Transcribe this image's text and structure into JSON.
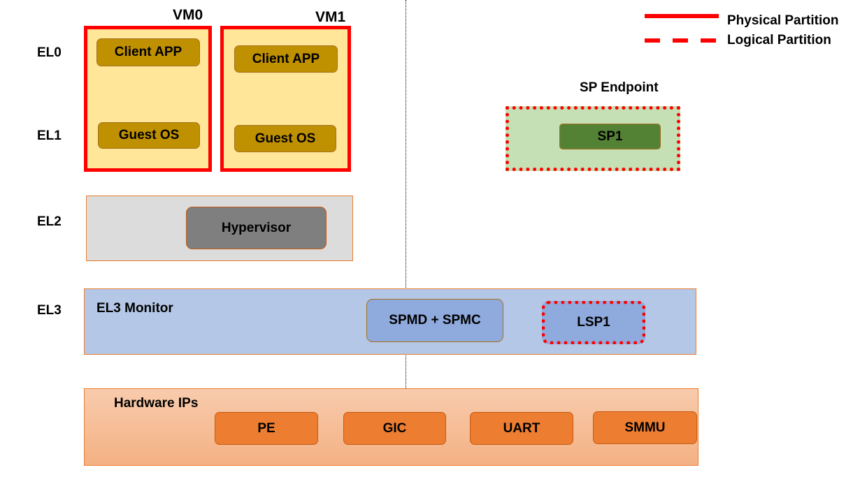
{
  "levels": [
    "EL0",
    "EL1",
    "EL2",
    "EL3"
  ],
  "vms": [
    {
      "name": "VM0",
      "client": "Client APP",
      "os": "Guest OS"
    },
    {
      "name": "VM1",
      "client": "Client APP",
      "os": "Guest OS"
    }
  ],
  "sp_endpoint": {
    "title": "SP Endpoint",
    "sp": "SP1"
  },
  "el2": {
    "hypervisor": "Hypervisor"
  },
  "el3": {
    "title": "EL3 Monitor",
    "spmd": "SPMD + SPMC",
    "lsp": "LSP1"
  },
  "hardware": {
    "title": "Hardware IPs",
    "ips": [
      "PE",
      "GIC",
      "UART",
      "SMMU"
    ]
  },
  "legend": {
    "physical": "Physical Partition",
    "logical": "Logical Partition"
  },
  "colors": {
    "partition": "#ff0000",
    "vm_fill": "#ffe699",
    "app": "#bf9000",
    "sp_fill": "#c5e0b4",
    "sp1": "#548235",
    "el2_fill": "#dcdcdc",
    "hypervisor": "#7f7f7f",
    "el3_fill": "#b4c7e7",
    "spmc": "#8faadc",
    "hw_fill": "#f8cbad",
    "ip": "#ed7d31"
  }
}
